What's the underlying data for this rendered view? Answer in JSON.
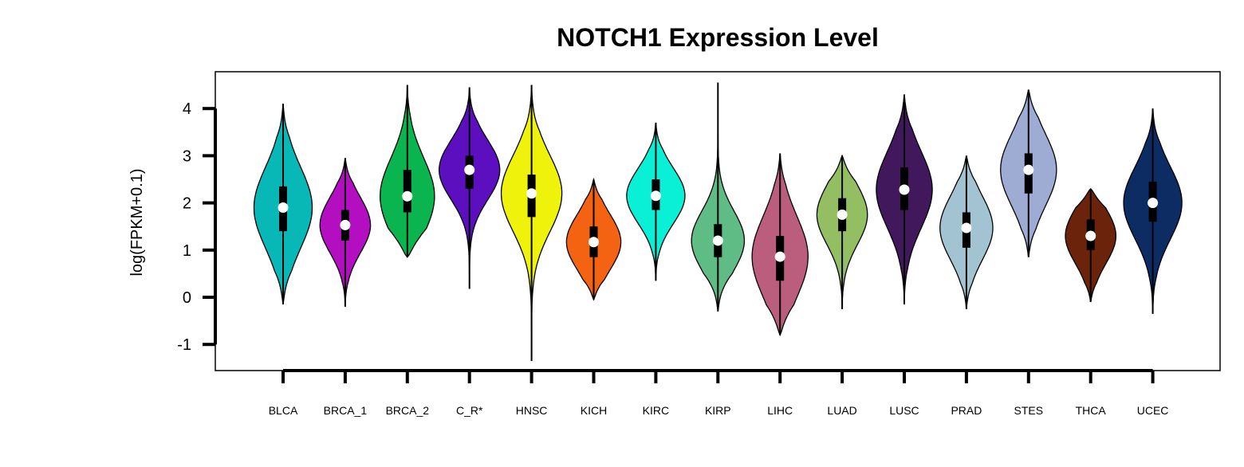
{
  "chart_data": {
    "type": "violin",
    "title": "NOTCH1 Expression Level",
    "ylabel": "log(FPKM+0.1)",
    "xlabel": "",
    "ylim": [
      -1.55,
      4.85
    ],
    "yticks": [
      -1,
      0,
      1,
      2,
      3,
      4
    ],
    "grid": false,
    "legend": "none",
    "categories": [
      "BLCA",
      "BRCA_1",
      "BRCA_2",
      "C_R*",
      "HNSC",
      "KICH",
      "KIRC",
      "KIRP",
      "LIHC",
      "LUAD",
      "LUSC",
      "PRAD",
      "STES",
      "THCA",
      "UCEC"
    ],
    "series": [
      {
        "category": "BLCA",
        "color": "#08b8b6",
        "min": -0.15,
        "max": 4.1,
        "q1": 1.4,
        "median": 1.9,
        "q3": 2.35,
        "width": 0.75
      },
      {
        "category": "BRCA_1",
        "color": "#b30fc0",
        "min": -0.2,
        "max": 2.95,
        "q1": 1.2,
        "median": 1.53,
        "q3": 1.85,
        "width": 0.65
      },
      {
        "category": "BRCA_2",
        "color": "#0ab44f",
        "min": 0.85,
        "max": 4.5,
        "q1": 1.8,
        "median": 2.14,
        "q3": 2.7,
        "width": 0.7
      },
      {
        "category": "C_R*",
        "color": "#5b0fbf",
        "min": 0.18,
        "max": 4.45,
        "q1": 2.3,
        "median": 2.7,
        "q3": 3.0,
        "width": 0.78
      },
      {
        "category": "HNSC",
        "color": "#eff20a",
        "min": -1.35,
        "max": 4.5,
        "q1": 1.7,
        "median": 2.2,
        "q3": 2.6,
        "width": 0.78
      },
      {
        "category": "KICH",
        "color": "#f46311",
        "min": -0.05,
        "max": 2.5,
        "q1": 0.85,
        "median": 1.17,
        "q3": 1.5,
        "width": 0.7
      },
      {
        "category": "KIRC",
        "color": "#0af0d7",
        "min": 0.35,
        "max": 3.7,
        "q1": 1.85,
        "median": 2.15,
        "q3": 2.5,
        "width": 0.75
      },
      {
        "category": "KIRP",
        "color": "#5fbc85",
        "min": -0.3,
        "max": 4.55,
        "q1": 0.85,
        "median": 1.2,
        "q3": 1.55,
        "width": 0.68
      },
      {
        "category": "LIHC",
        "color": "#bb5e7e",
        "min": -0.8,
        "max": 3.05,
        "q1": 0.35,
        "median": 0.86,
        "q3": 1.3,
        "width": 0.72
      },
      {
        "category": "LUAD",
        "color": "#94be62",
        "min": -0.25,
        "max": 3.0,
        "q1": 1.4,
        "median": 1.75,
        "q3": 2.1,
        "width": 0.65
      },
      {
        "category": "LUSC",
        "color": "#42185d",
        "min": -0.15,
        "max": 4.3,
        "q1": 1.85,
        "median": 2.28,
        "q3": 2.75,
        "width": 0.72
      },
      {
        "category": "PRAD",
        "color": "#a1c3d2",
        "min": -0.25,
        "max": 3.0,
        "q1": 1.05,
        "median": 1.47,
        "q3": 1.8,
        "width": 0.68
      },
      {
        "category": "STES",
        "color": "#9eabd3",
        "min": 0.85,
        "max": 4.4,
        "q1": 2.2,
        "median": 2.7,
        "q3": 3.05,
        "width": 0.72
      },
      {
        "category": "THCA",
        "color": "#6b240b",
        "min": -0.1,
        "max": 2.3,
        "q1": 1.0,
        "median": 1.3,
        "q3": 1.65,
        "width": 0.65
      },
      {
        "category": "UCEC",
        "color": "#0e2c64",
        "min": -0.35,
        "max": 4.0,
        "q1": 1.6,
        "median": 2.0,
        "q3": 2.45,
        "width": 0.75
      }
    ]
  }
}
